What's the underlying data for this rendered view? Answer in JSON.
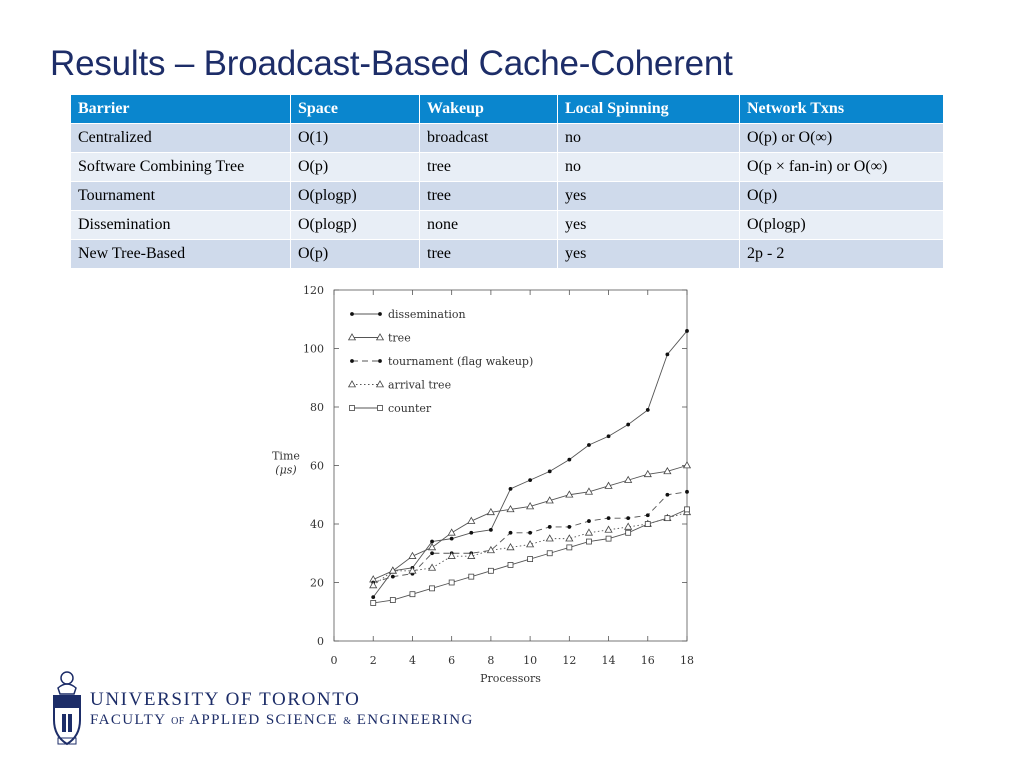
{
  "slide": {
    "title": "Results – Broadcast-Based Cache-Coherent"
  },
  "table": {
    "headers": [
      "Barrier",
      "Space",
      "Wakeup",
      "Local Spinning",
      "Network Txns"
    ],
    "rows": [
      [
        "Centralized",
        "O(1)",
        "broadcast",
        "no",
        "O(p) or O(∞)"
      ],
      [
        "Software Combining Tree",
        "O(p)",
        "tree",
        "no",
        "O(p × fan-in) or O(∞)"
      ],
      [
        "Tournament",
        "O(plogp)",
        "tree",
        "yes",
        "O(p)"
      ],
      [
        "Dissemination",
        "O(plogp)",
        "none",
        "yes",
        "O(plogp)"
      ],
      [
        "New Tree-Based",
        "O(p)",
        "tree",
        "yes",
        "2p - 2"
      ]
    ],
    "colors": {
      "header_bg": "#0a86ce",
      "row_dark": "#cfdaeb",
      "row_light": "#e8eef6"
    }
  },
  "chart_data": {
    "type": "line",
    "xlabel": "Processors",
    "ylabel_line1": "Time",
    "ylabel_line2": "(μs)",
    "xlim": [
      0,
      18
    ],
    "ylim": [
      0,
      120
    ],
    "xticks": [
      0,
      2,
      4,
      6,
      8,
      10,
      12,
      14,
      16,
      18
    ],
    "yticks": [
      0,
      20,
      40,
      60,
      80,
      100,
      120
    ],
    "grid": false,
    "legend_position": "top-left",
    "x": [
      2,
      3,
      4,
      5,
      6,
      7,
      8,
      9,
      10,
      11,
      12,
      13,
      14,
      15,
      16,
      17,
      18
    ],
    "series": [
      {
        "name": "dissemination",
        "marker": "dot",
        "dash": "solid",
        "values": [
          15,
          24,
          25,
          34,
          35,
          37,
          38,
          52,
          55,
          58,
          62,
          67,
          70,
          74,
          79,
          98,
          106
        ]
      },
      {
        "name": "tree",
        "marker": "triangle",
        "dash": "solid",
        "values": [
          21,
          24,
          29,
          32,
          37,
          41,
          44,
          45,
          46,
          48,
          50,
          51,
          53,
          55,
          57,
          58,
          60
        ]
      },
      {
        "name": "tournament (flag wakeup)",
        "marker": "dot",
        "dash": "dashed",
        "values": [
          20,
          22,
          23,
          30,
          30,
          30,
          31,
          37,
          37,
          39,
          39,
          41,
          42,
          42,
          43,
          50,
          51
        ]
      },
      {
        "name": "arrival tree",
        "marker": "triangle",
        "dash": "dotted",
        "values": [
          19,
          24,
          24,
          25,
          29,
          29,
          31,
          32,
          33,
          35,
          35,
          37,
          38,
          39,
          40,
          42,
          44
        ]
      },
      {
        "name": "counter",
        "marker": "square",
        "dash": "solid",
        "values": [
          13,
          14,
          16,
          18,
          20,
          22,
          24,
          26,
          28,
          30,
          32,
          34,
          35,
          37,
          40,
          42,
          45
        ]
      }
    ]
  },
  "footer": {
    "university": "UNIVERSITY OF TORONTO",
    "faculty_1": "FACULTY ",
    "faculty_of": "OF",
    "faculty_2": " APPLIED SCIENCE ",
    "faculty_amp": "&",
    "faculty_3": " ENGINEERING",
    "logo_icon": "university-crest-icon"
  }
}
